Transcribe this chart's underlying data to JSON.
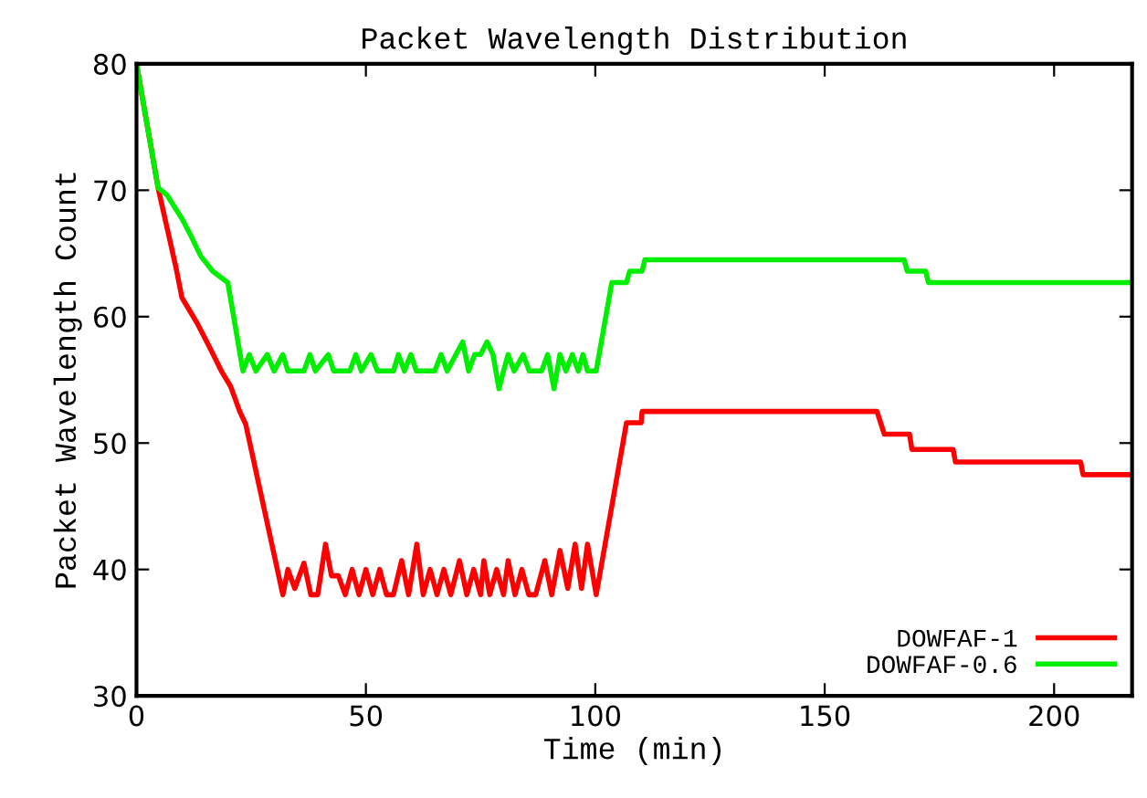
{
  "chart_data": {
    "type": "line",
    "title": "Packet Wavelength Distribution",
    "xlabel": "Time (min)",
    "ylabel": "Packet Wavelength Count",
    "xlim": [
      0,
      217
    ],
    "xticks": [
      0,
      50,
      100,
      150,
      200
    ],
    "ylim": [
      30,
      80
    ],
    "yticks": [
      30,
      40,
      50,
      60,
      70,
      80
    ],
    "grid": false,
    "legend": "bottom right",
    "marker": "none",
    "line_style": "solid",
    "series": [
      {
        "name": "DOWFAF-1",
        "color": "#ff0000",
        "x": [
          0,
          4.7,
          8.6,
          9.9,
          13.2,
          15.9,
          18.5,
          20.5,
          22.5,
          23.8,
          31.9,
          33,
          34.5,
          36.5,
          38,
          39.5,
          41.2,
          42.5,
          44,
          45.5,
          47,
          48.5,
          50,
          51.5,
          53,
          54.5,
          56,
          57.8,
          59.3,
          61.1,
          62.5,
          64,
          65.5,
          67,
          68.5,
          70.4,
          72,
          73.5,
          75,
          75.7,
          77,
          78.5,
          80,
          81,
          82.5,
          84,
          85.5,
          87,
          89,
          90.5,
          92.3,
          94,
          95.6,
          97,
          98.3,
          100.2,
          106.8,
          110,
          110.2,
          161.4,
          163,
          168.5,
          169,
          178,
          178.5,
          205.8,
          206.3,
          217
        ],
        "values": [
          80,
          70.2,
          63.9,
          61.5,
          59.5,
          57.6,
          55.7,
          54.5,
          52.5,
          51.5,
          38,
          40,
          38.5,
          40.5,
          38,
          38,
          42,
          39.5,
          39.5,
          38,
          40,
          38,
          40,
          38,
          40,
          38,
          38,
          40.7,
          38,
          42,
          38,
          40,
          38,
          40,
          38,
          40.7,
          38,
          40,
          38,
          40.7,
          38,
          40,
          38,
          40.7,
          38,
          40,
          38,
          38,
          40.7,
          38,
          41.5,
          38.5,
          42,
          38.5,
          42,
          38,
          51.6,
          51.6,
          52.5,
          52.5,
          50.7,
          50.7,
          49.5,
          49.5,
          48.5,
          48.5,
          47.5,
          47.5
        ]
      },
      {
        "name": "DOWFAF-0.6",
        "color": "#00ee00",
        "x": [
          0,
          4.7,
          6.7,
          10,
          12,
          14,
          16.6,
          19.9,
          23.2,
          24.6,
          26,
          28.5,
          30,
          31.9,
          33,
          36.5,
          37.8,
          39,
          41.8,
          43,
          46.5,
          47.8,
          49,
          51.1,
          52.5,
          56,
          57.1,
          58.4,
          59.8,
          61,
          65,
          66.4,
          67.7,
          71.1,
          72.4,
          73.7,
          75,
          76.4,
          77.7,
          79,
          80,
          81,
          82.3,
          84.3,
          85.6,
          88.3,
          89.6,
          91,
          92.3,
          93.6,
          95,
          96.3,
          97.3,
          98.3,
          100.2,
          103.6,
          106.8,
          107.5,
          110.2,
          110.8,
          167.3,
          168,
          172,
          172.6,
          217
        ],
        "values": [
          80,
          70.2,
          69.6,
          67.7,
          66.3,
          64.8,
          63.6,
          62.7,
          55.7,
          57,
          55.7,
          57,
          55.7,
          57,
          55.7,
          55.7,
          57,
          55.7,
          57,
          55.7,
          55.7,
          57,
          55.7,
          57,
          55.7,
          55.7,
          57,
          55.7,
          57,
          55.7,
          55.7,
          57,
          55.7,
          58,
          55.7,
          57,
          57,
          58,
          57,
          54.3,
          55.7,
          57,
          55.7,
          57,
          55.7,
          55.7,
          57,
          54.3,
          57,
          55.7,
          57,
          55.7,
          57,
          55.7,
          55.7,
          62.7,
          62.7,
          63.6,
          63.6,
          64.5,
          64.5,
          63.6,
          63.6,
          62.7,
          62.7
        ]
      }
    ]
  }
}
